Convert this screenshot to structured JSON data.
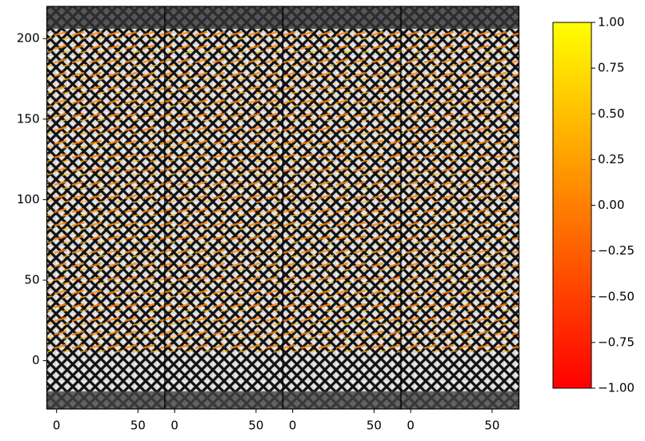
{
  "chart_data": [
    {
      "type": "quiver",
      "xlim": [
        -6,
        66.5
      ],
      "xticks": [
        0,
        50
      ],
      "ylim": [
        -30,
        220
      ],
      "yticks": [
        0,
        50,
        100,
        150,
        200
      ]
    },
    {
      "type": "quiver",
      "xlim": [
        -6,
        66.5
      ],
      "xticks": [
        0,
        50
      ],
      "ylim": [
        -30,
        220
      ]
    },
    {
      "type": "quiver",
      "xlim": [
        -6,
        66.5
      ],
      "xticks": [
        0,
        50
      ],
      "ylim": [
        -30,
        220
      ]
    },
    {
      "type": "quiver",
      "xlim": [
        -6,
        66.5
      ],
      "xticks": [
        0,
        50
      ],
      "ylim": [
        -30,
        220
      ]
    },
    {
      "type": "colorbar",
      "clim": [
        -1,
        1
      ],
      "colors": [
        "#ff0000",
        "#ffff00"
      ],
      "cticks": [
        {
          "value": -1,
          "label": "−1.00"
        },
        {
          "value": -0.75,
          "label": "−0.75"
        },
        {
          "value": -0.5,
          "label": "−0.50"
        },
        {
          "value": -0.25,
          "label": "−0.25"
        },
        {
          "value": 0,
          "label": "0.00"
        },
        0.25,
        {
          "value": 0.5,
          "label": "0.50"
        },
        0.75,
        {
          "value": 1,
          "label": "1.00"
        }
      ]
    }
  ]
}
